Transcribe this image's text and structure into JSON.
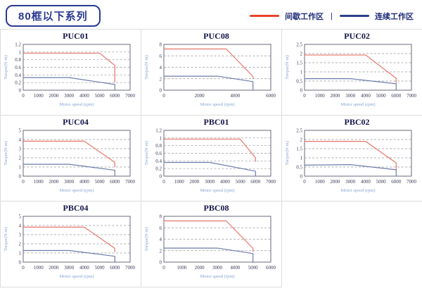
{
  "header": {
    "title": "80框以下系列",
    "legend_separator": "|",
    "legend": [
      {
        "label": "间歇工作区",
        "color": "#e8432a"
      },
      {
        "label": "连续工作区",
        "color": "#2b4187"
      }
    ]
  },
  "colors": {
    "accent_blue": "#2b3990",
    "intermittent_line": "#e8756a",
    "continuous_line": "#6e7dab",
    "grid_dash": "#999999",
    "plot_border": "#5a5a6e",
    "tick_text": "#3c3c5a",
    "axis_label_text": "#85a3d2",
    "cell_border": "#dddddd"
  },
  "chart_data": [
    {
      "type": "line",
      "title": "PUC01",
      "xlabel": "Motor speed (rpm)",
      "ylabel": "Torque(N·m)",
      "xlim": [
        0,
        7000
      ],
      "ylim": [
        0,
        1.2
      ],
      "xticks": [
        0,
        1000,
        2000,
        3000,
        4000,
        5000,
        6000,
        7000
      ],
      "yticks": [
        0,
        0.2,
        0.4,
        0.6,
        0.8,
        1,
        1.2
      ],
      "grid": "dashed-horizontal",
      "legend_position": "none",
      "series": [
        {
          "name": "间歇工作区",
          "color": "#e8756a",
          "points": [
            [
              0,
              0.97
            ],
            [
              5000,
              0.97
            ],
            [
              6000,
              0.65
            ],
            [
              6000,
              0.2
            ]
          ]
        },
        {
          "name": "连续工作区",
          "color": "#6e7dab",
          "points": [
            [
              0,
              0.33
            ],
            [
              3000,
              0.33
            ],
            [
              6000,
              0.15
            ],
            [
              6000,
              0
            ]
          ]
        }
      ]
    },
    {
      "type": "line",
      "title": "PUC08",
      "xlabel": "Motor speed (rpm)",
      "ylabel": "Torque(N·m)",
      "xlim": [
        0,
        6000
      ],
      "ylim": [
        0,
        8
      ],
      "xticks": [
        0,
        2000,
        4000,
        6000
      ],
      "yticks": [
        0,
        2,
        4,
        6,
        8
      ],
      "grid": "dashed-horizontal",
      "legend_position": "none",
      "series": [
        {
          "name": "间歇工作区",
          "color": "#e8756a",
          "points": [
            [
              0,
              7.2
            ],
            [
              3500,
              7.2
            ],
            [
              5000,
              2.4
            ],
            [
              5000,
              2.0
            ]
          ]
        },
        {
          "name": "连续工作区",
          "color": "#6e7dab",
          "points": [
            [
              0,
              2.45
            ],
            [
              3000,
              2.45
            ],
            [
              5000,
              1.5
            ],
            [
              5000,
              0
            ]
          ]
        }
      ]
    },
    {
      "type": "line",
      "title": "PUC02",
      "xlabel": "Motor speed (rpm)",
      "ylabel": "Torque(N·m)",
      "xlim": [
        0,
        7000
      ],
      "ylim": [
        0,
        2.5
      ],
      "xticks": [
        0,
        1000,
        2000,
        3000,
        4000,
        5000,
        6000,
        7000
      ],
      "yticks": [
        0,
        0.5,
        1,
        1.5,
        2,
        2.5
      ],
      "grid": "dashed-horizontal",
      "legend_position": "none",
      "series": [
        {
          "name": "间歇工作区",
          "color": "#e8756a",
          "points": [
            [
              0,
              1.92
            ],
            [
              4000,
              1.92
            ],
            [
              6000,
              0.65
            ],
            [
              6000,
              0.4
            ]
          ]
        },
        {
          "name": "连续工作区",
          "color": "#6e7dab",
          "points": [
            [
              0,
              0.63
            ],
            [
              3000,
              0.63
            ],
            [
              6000,
              0.35
            ],
            [
              6000,
              0
            ]
          ]
        }
      ]
    },
    {
      "type": "line",
      "title": "PUC04",
      "xlabel": "Motor speed (rpm)",
      "ylabel": "Torque(N·m)",
      "xlim": [
        0,
        7000
      ],
      "ylim": [
        0,
        5
      ],
      "xticks": [
        0,
        1000,
        2000,
        3000,
        4000,
        5000,
        6000,
        7000
      ],
      "yticks": [
        0,
        1,
        2,
        3,
        4,
        5
      ],
      "grid": "dashed-horizontal",
      "legend_position": "none",
      "series": [
        {
          "name": "间歇工作区",
          "color": "#e8756a",
          "points": [
            [
              0,
              3.82
            ],
            [
              4000,
              3.82
            ],
            [
              6000,
              1.5
            ],
            [
              6000,
              1.0
            ]
          ]
        },
        {
          "name": "连续工作区",
          "color": "#6e7dab",
          "points": [
            [
              0,
              1.3
            ],
            [
              3000,
              1.3
            ],
            [
              6000,
              0.65
            ],
            [
              6000,
              0
            ]
          ]
        }
      ]
    },
    {
      "type": "line",
      "title": "PBC01",
      "xlabel": "Motor speed (rpm)",
      "ylabel": "Torque(N·m)",
      "xlim": [
        0,
        7000
      ],
      "ylim": [
        0,
        1.2
      ],
      "xticks": [
        0,
        1000,
        2000,
        3000,
        4000,
        5000,
        6000,
        7000
      ],
      "yticks": [
        0,
        0.2,
        0.4,
        0.6,
        0.8,
        1,
        1.2
      ],
      "grid": "dashed-horizontal",
      "legend_position": "none",
      "series": [
        {
          "name": "间歇工作区",
          "color": "#e8756a",
          "points": [
            [
              0,
              0.97
            ],
            [
              5000,
              0.97
            ],
            [
              6000,
              0.48
            ],
            [
              6000,
              0.38
            ]
          ]
        },
        {
          "name": "连续工作区",
          "color": "#6e7dab",
          "points": [
            [
              0,
              0.36
            ],
            [
              3000,
              0.36
            ],
            [
              6000,
              0.13
            ],
            [
              6000,
              0
            ]
          ]
        }
      ]
    },
    {
      "type": "line",
      "title": "PBC02",
      "xlabel": "Motor speed (rpm)",
      "ylabel": "Torque(N·m)",
      "xlim": [
        0,
        7000
      ],
      "ylim": [
        0,
        2.5
      ],
      "xticks": [
        0,
        1000,
        2000,
        3000,
        4000,
        5000,
        6000,
        7000
      ],
      "yticks": [
        0,
        0.5,
        1,
        1.5,
        2,
        2.5
      ],
      "grid": "dashed-horizontal",
      "legend_position": "none",
      "series": [
        {
          "name": "间歇工作区",
          "color": "#e8756a",
          "points": [
            [
              0,
              1.9
            ],
            [
              4000,
              1.9
            ],
            [
              6000,
              0.72
            ],
            [
              6000,
              0.35
            ]
          ]
        },
        {
          "name": "连续工作区",
          "color": "#6e7dab",
          "points": [
            [
              0,
              0.6
            ],
            [
              3000,
              0.63
            ],
            [
              6000,
              0.35
            ],
            [
              6000,
              0
            ]
          ]
        }
      ]
    },
    {
      "type": "line",
      "title": "PBC04",
      "xlabel": "Motor speed (rpm)",
      "ylabel": "Torque(N·m)",
      "xlim": [
        0,
        7000
      ],
      "ylim": [
        0,
        5
      ],
      "xticks": [
        0,
        1000,
        2000,
        3000,
        4000,
        5000,
        6000,
        7000
      ],
      "yticks": [
        0,
        1,
        2,
        3,
        4,
        5
      ],
      "grid": "dashed-horizontal",
      "legend_position": "none",
      "series": [
        {
          "name": "间歇工作区",
          "color": "#e8756a",
          "points": [
            [
              0,
              3.82
            ],
            [
              4000,
              3.82
            ],
            [
              6000,
              1.5
            ],
            [
              6000,
              1.1
            ]
          ]
        },
        {
          "name": "连续工作区",
          "color": "#6e7dab",
          "points": [
            [
              0,
              1.27
            ],
            [
              3000,
              1.27
            ],
            [
              6000,
              0.64
            ],
            [
              6000,
              0
            ]
          ]
        }
      ]
    },
    {
      "type": "line",
      "title": "PBC08",
      "xlabel": "Motor speed (rpm)",
      "ylabel": "Torque(N·m)",
      "xlim": [
        0,
        6000
      ],
      "ylim": [
        0,
        8
      ],
      "xticks": [
        0,
        1000,
        2000,
        3000,
        4000,
        5000,
        6000
      ],
      "yticks": [
        0,
        2,
        4,
        6,
        8
      ],
      "grid": "dashed-horizontal",
      "legend_position": "none",
      "series": [
        {
          "name": "间歇工作区",
          "color": "#e8756a",
          "points": [
            [
              0,
              7.2
            ],
            [
              3500,
              7.2
            ],
            [
              5000,
              2.4
            ],
            [
              5000,
              1.8
            ]
          ]
        },
        {
          "name": "连续工作区",
          "color": "#6e7dab",
          "points": [
            [
              0,
              2.45
            ],
            [
              3000,
              2.45
            ],
            [
              5000,
              1.5
            ],
            [
              5000,
              0
            ]
          ]
        }
      ]
    }
  ]
}
